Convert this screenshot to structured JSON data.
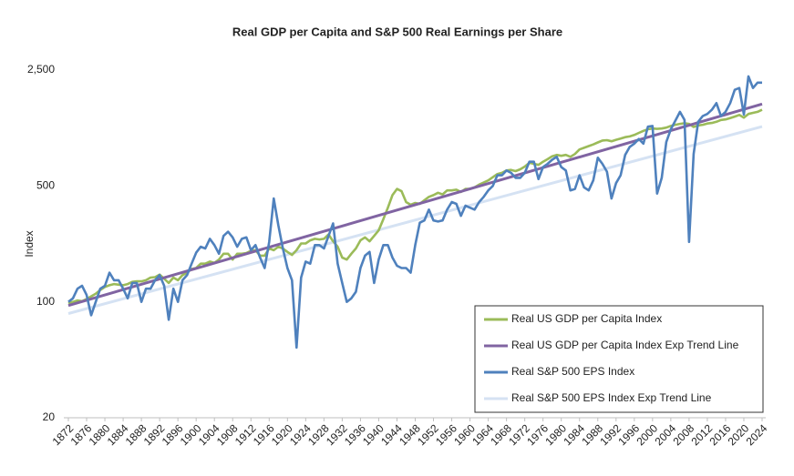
{
  "chart_data": {
    "type": "line",
    "title": "Real GDP per Capita and S&P 500 Real Earnings per Share",
    "y_label": "Index",
    "log_scale": true,
    "grid": false,
    "legend": "lower right",
    "xlim": [
      1872,
      2024
    ],
    "xticks": [
      1872,
      1876,
      1880,
      1884,
      1888,
      1892,
      1896,
      1900,
      1904,
      1908,
      1912,
      1916,
      1920,
      1924,
      1928,
      1932,
      1936,
      1940,
      1944,
      1948,
      1952,
      1956,
      1960,
      1964,
      1968,
      1972,
      1976,
      1980,
      1984,
      1988,
      1992,
      1996,
      2000,
      2004,
      2008,
      2012,
      2016,
      2020,
      2024
    ],
    "ylim": [
      20,
      2500
    ],
    "yticks": [
      20,
      100,
      500,
      {
        "value": 2500,
        "label": "2,500"
      }
    ],
    "x": [
      1872,
      1873,
      1874,
      1875,
      1876,
      1877,
      1878,
      1879,
      1880,
      1881,
      1882,
      1883,
      1884,
      1885,
      1886,
      1887,
      1888,
      1889,
      1890,
      1891,
      1892,
      1893,
      1894,
      1895,
      1896,
      1897,
      1898,
      1899,
      1900,
      1901,
      1902,
      1903,
      1904,
      1905,
      1906,
      1907,
      1908,
      1909,
      1910,
      1911,
      1912,
      1913,
      1914,
      1915,
      1916,
      1917,
      1918,
      1919,
      1920,
      1921,
      1922,
      1923,
      1924,
      1925,
      1926,
      1927,
      1928,
      1929,
      1930,
      1931,
      1932,
      1933,
      1934,
      1935,
      1936,
      1937,
      1938,
      1939,
      1940,
      1941,
      1942,
      1943,
      1944,
      1945,
      1946,
      1947,
      1948,
      1949,
      1950,
      1951,
      1952,
      1953,
      1954,
      1955,
      1956,
      1957,
      1958,
      1959,
      1960,
      1961,
      1962,
      1963,
      1964,
      1965,
      1966,
      1967,
      1968,
      1969,
      1970,
      1971,
      1972,
      1973,
      1974,
      1975,
      1976,
      1977,
      1978,
      1979,
      1980,
      1981,
      1982,
      1983,
      1984,
      1985,
      1986,
      1987,
      1988,
      1989,
      1990,
      1991,
      1992,
      1993,
      1994,
      1995,
      1996,
      1997,
      1998,
      1999,
      2000,
      2001,
      2002,
      2003,
      2004,
      2005,
      2006,
      2007,
      2008,
      2009,
      2010,
      2011,
      2012,
      2013,
      2014,
      2015,
      2016,
      2017,
      2018,
      2019,
      2020,
      2021,
      2022,
      2023,
      2024
    ],
    "series": [
      {
        "name": "Real US GDP per Capita Index",
        "color": "#9bbb59",
        "values": [
          98,
          100,
          102,
          101,
          104,
          108,
          112,
          118,
          123,
          126,
          128,
          127,
          126,
          128,
          132,
          133,
          133,
          135,
          140,
          141,
          146,
          138,
          130,
          140,
          135,
          145,
          150,
          158,
          160,
          170,
          170,
          175,
          172,
          180,
          195,
          195,
          180,
          195,
          195,
          197,
          203,
          205,
          190,
          190,
          210,
          205,
          215,
          210,
          200,
          192,
          205,
          225,
          225,
          235,
          240,
          238,
          240,
          255,
          232,
          215,
          185,
          180,
          195,
          210,
          235,
          245,
          232,
          250,
          270,
          315,
          370,
          440,
          480,
          465,
          400,
          385,
          395,
          390,
          410,
          430,
          440,
          455,
          445,
          470,
          470,
          475,
          460,
          480,
          480,
          490,
          510,
          525,
          540,
          565,
          590,
          600,
          620,
          625,
          615,
          630,
          655,
          690,
          680,
          670,
          700,
          725,
          755,
          770,
          760,
          770,
          750,
          780,
          830,
          850,
          870,
          890,
          915,
          940,
          945,
          930,
          950,
          965,
          985,
          995,
          1015,
          1045,
          1075,
          1100,
          1110,
          1105,
          1110,
          1125,
          1150,
          1170,
          1185,
          1195,
          1185,
          1135,
          1160,
          1170,
          1190,
          1200,
          1220,
          1250,
          1260,
          1285,
          1310,
          1340,
          1290,
          1360,
          1380,
          1400,
          1440
        ]
      },
      {
        "name": "Real US GDP per Capita Index Exp Trend Line",
        "color": "#8064a2",
        "x": [
          1872,
          2024
        ],
        "values": [
          95,
          1560
        ]
      },
      {
        "name": "Real S&P 500 EPS Index",
        "color": "#4f81bd",
        "values": [
          100,
          105,
          120,
          125,
          110,
          83,
          100,
          120,
          125,
          150,
          135,
          135,
          120,
          105,
          130,
          130,
          100,
          120,
          120,
          135,
          145,
          125,
          78,
          120,
          100,
          135,
          145,
          170,
          198,
          215,
          210,
          240,
          220,
          195,
          250,
          265,
          245,
          215,
          240,
          245,
          205,
          220,
          185,
          160,
          230,
          420,
          290,
          210,
          160,
          135,
          53,
          140,
          175,
          170,
          220,
          220,
          210,
          250,
          297,
          170,
          130,
          100,
          105,
          115,
          160,
          190,
          200,
          130,
          180,
          220,
          220,
          185,
          165,
          160,
          160,
          150,
          220,
          300,
          310,
          360,
          310,
          305,
          310,
          360,
          400,
          390,
          330,
          380,
          370,
          360,
          400,
          430,
          470,
          500,
          580,
          580,
          620,
          600,
          560,
          560,
          600,
          700,
          700,
          550,
          650,
          680,
          720,
          750,
          650,
          620,
          470,
          480,
          580,
          490,
          470,
          540,
          740,
          680,
          610,
          420,
          520,
          580,
          770,
          860,
          900,
          960,
          900,
          1140,
          1150,
          450,
          560,
          920,
          1100,
          1240,
          1400,
          1250,
          230,
          780,
          1220,
          1320,
          1360,
          1440,
          1580,
          1320,
          1400,
          1580,
          1900,
          1950,
          1350,
          2290,
          1950,
          2100,
          2100
        ]
      },
      {
        "name": "Real S&P 500 EPS Index Exp Trend Line",
        "color": "#d5e2f3",
        "x": [
          1872,
          2024
        ],
        "values": [
          85,
          1140
        ]
      }
    ]
  }
}
